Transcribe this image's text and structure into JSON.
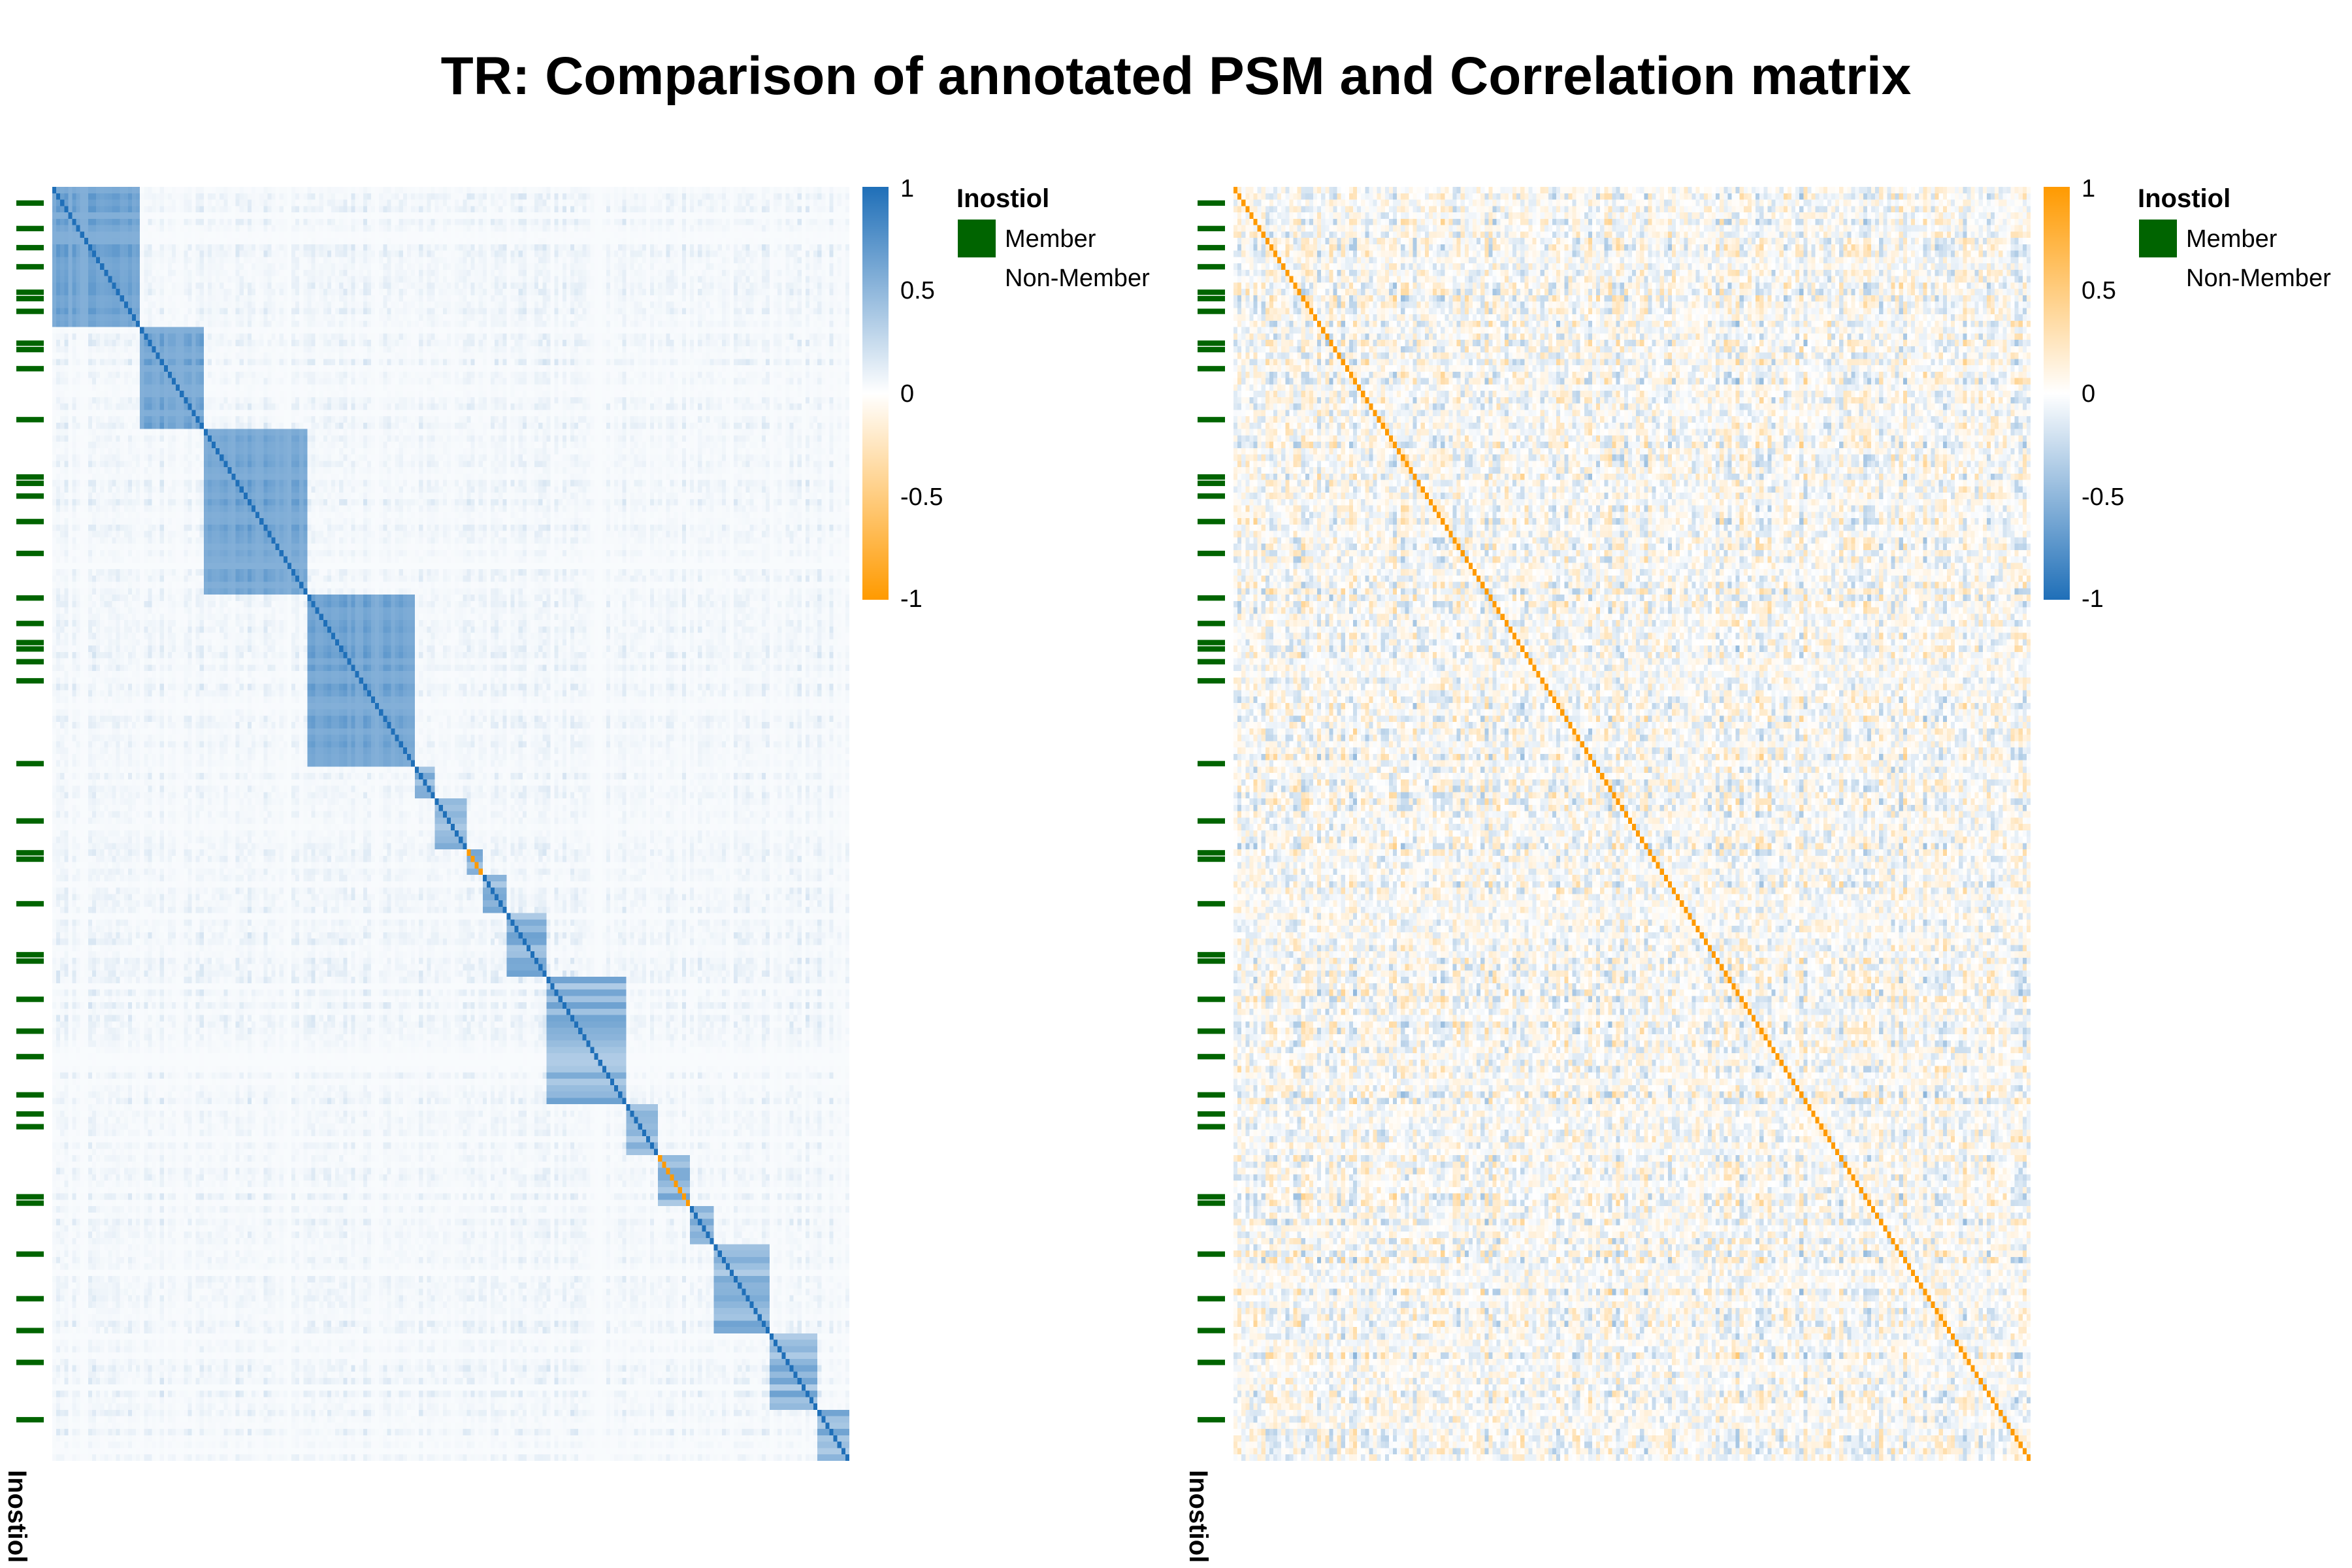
{
  "title": "TR: Comparison of annotated PSM and Correlation matrix",
  "colors": {
    "blue": "#1f6fb8",
    "orange": "#ff9a00",
    "member": "#006400"
  },
  "chart_data": [
    {
      "type": "heatmap",
      "name": "annotated PSM",
      "n": 200,
      "blocks": [
        [
          0,
          22
        ],
        [
          22,
          38
        ],
        [
          38,
          64
        ],
        [
          64,
          91
        ],
        [
          91,
          96
        ],
        [
          96,
          104
        ],
        [
          104,
          108
        ],
        [
          108,
          114
        ],
        [
          114,
          124
        ],
        [
          124,
          144
        ],
        [
          144,
          152
        ],
        [
          152,
          160
        ],
        [
          160,
          166
        ],
        [
          166,
          180
        ],
        [
          180,
          192
        ],
        [
          192,
          200
        ]
      ],
      "colorbar": {
        "ticks": [
          "1",
          "0.5",
          "0",
          "-0.5",
          "-1"
        ],
        "range": [
          -1,
          1
        ],
        "high_color": "#1f6fb8",
        "low_color": "#ff9a00"
      },
      "legend": {
        "title": "Inostiol",
        "items": [
          "Member",
          "Non-Member"
        ]
      },
      "annotation_label": "Inostiol"
    },
    {
      "type": "heatmap",
      "name": "Correlation matrix",
      "n": 200,
      "colorbar": {
        "ticks": [
          "1",
          "0.5",
          "0",
          "-0.5",
          "-1"
        ],
        "range": [
          -1,
          1
        ],
        "high_color": "#ff9a00",
        "low_color": "#1f6fb8"
      },
      "legend": {
        "title": "Inostiol",
        "items": [
          "Member",
          "Non-Member"
        ]
      },
      "annotation_label": "Inostiol"
    }
  ],
  "annotation": {
    "member_rows": [
      2,
      6,
      9,
      12,
      16,
      17,
      19,
      24,
      25,
      28,
      36,
      45,
      46,
      48,
      52,
      57,
      64,
      68,
      71,
      72,
      74,
      77,
      90,
      99,
      104,
      105,
      112,
      120,
      121,
      127,
      132,
      136,
      142,
      145,
      147,
      158,
      159,
      167,
      174,
      179,
      184,
      193
    ]
  }
}
